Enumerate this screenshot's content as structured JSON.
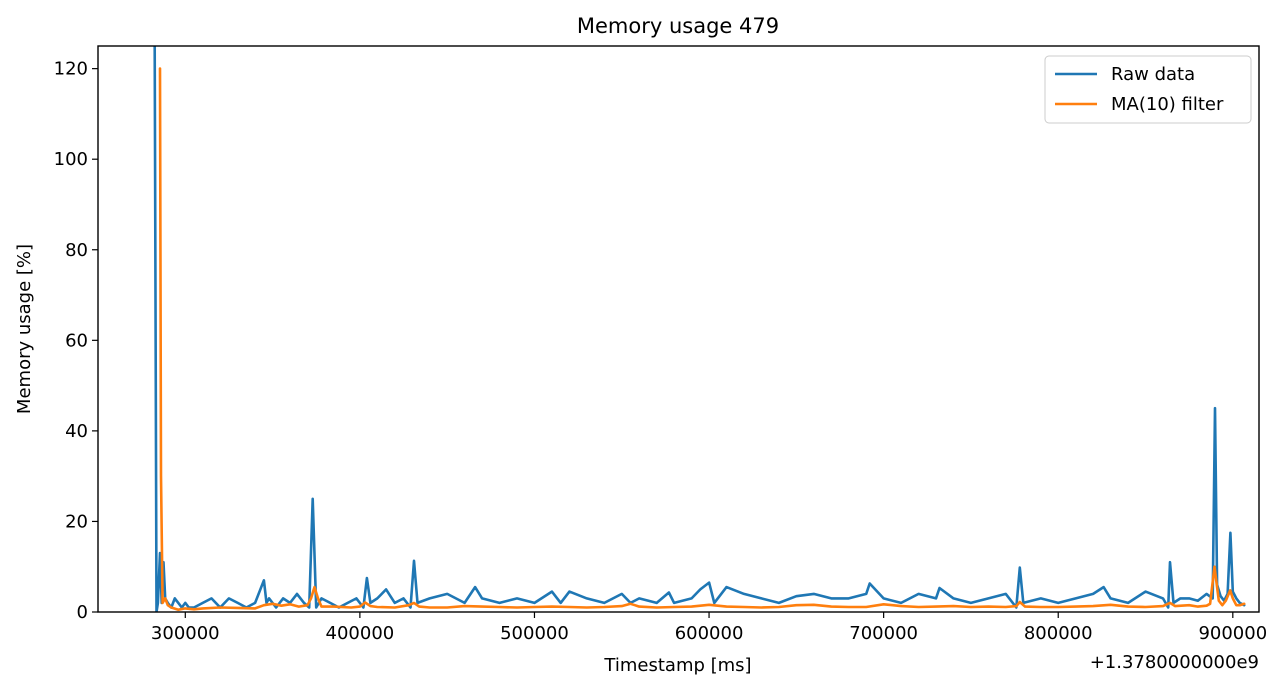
{
  "chart_data": {
    "type": "line",
    "title": "Memory usage 479",
    "xlabel": "Timestamp [ms]",
    "ylabel": "Memory usage [%]",
    "x_offset_label": "+1.3780000000e9",
    "xlim": [
      250000,
      915000
    ],
    "ylim": [
      0,
      125
    ],
    "x_ticks": [
      300000,
      400000,
      500000,
      600000,
      700000,
      800000,
      900000
    ],
    "x_tick_labels": [
      "300000",
      "400000",
      "500000",
      "600000",
      "700000",
      "800000",
      "900000"
    ],
    "y_ticks": [
      0,
      20,
      40,
      60,
      80,
      100,
      120
    ],
    "y_tick_labels": [
      "0",
      "20",
      "40",
      "60",
      "80",
      "100",
      "120"
    ],
    "grid": false,
    "legend_position": "top-right",
    "series": [
      {
        "name": "Raw data",
        "color": "#1f77b4",
        "x": [
          282500,
          283500,
          284300,
          285500,
          286500,
          287500,
          288500,
          290000,
          292000,
          294000,
          296000,
          298000,
          300000,
          302000,
          305000,
          310000,
          315000,
          320000,
          325000,
          330000,
          335000,
          340000,
          345000,
          346500,
          348000,
          352000,
          356000,
          360000,
          364000,
          368000,
          371000,
          373000,
          375000,
          378000,
          383000,
          388000,
          393000,
          398000,
          402000,
          404000,
          406000,
          410000,
          415000,
          420000,
          425000,
          429000,
          431000,
          433000,
          440000,
          450000,
          460000,
          466000,
          470000,
          480000,
          490000,
          500000,
          510000,
          515000,
          520000,
          530000,
          540000,
          550000,
          555000,
          560000,
          570000,
          577000,
          580000,
          590000,
          595000,
          600000,
          603000,
          610000,
          620000,
          630000,
          640000,
          650000,
          660000,
          670000,
          680000,
          690000,
          692000,
          700000,
          710000,
          720000,
          730000,
          732000,
          740000,
          750000,
          760000,
          770000,
          776000,
          778000,
          780000,
          790000,
          800000,
          810000,
          820000,
          826000,
          830000,
          840000,
          850000,
          860000,
          863000,
          864000,
          866000,
          870000,
          875000,
          880000,
          885000,
          888500,
          889800,
          891000,
          893000,
          895000,
          897000,
          898600,
          900000,
          902000,
          904000,
          906500
        ],
        "y": [
          125,
          0,
          2,
          13,
          2,
          11,
          3,
          2,
          1,
          3,
          2,
          1,
          2,
          1,
          1,
          2,
          3,
          1,
          3,
          2,
          1,
          2,
          7,
          2,
          3,
          1,
          3,
          2,
          4,
          2,
          1,
          25,
          1,
          3,
          2,
          1,
          2,
          3,
          1,
          7.5,
          2,
          3,
          5,
          2,
          3,
          1,
          11.3,
          2,
          3,
          4,
          2,
          5.5,
          3,
          2,
          3,
          2,
          4.5,
          2,
          4.5,
          3,
          2,
          4,
          2,
          3,
          2,
          4.3,
          2,
          3,
          5,
          6.5,
          2,
          5.5,
          4,
          3,
          2,
          3.5,
          4,
          3,
          3,
          4,
          6.3,
          3,
          2,
          4,
          3,
          5.3,
          3,
          2,
          3,
          4,
          1,
          9.8,
          2,
          3,
          2,
          3,
          4,
          5.5,
          3,
          2,
          4.5,
          3,
          1,
          11,
          2,
          3,
          3,
          2.5,
          4,
          3,
          45,
          6,
          3.5,
          2.5,
          4,
          17.5,
          4.5,
          3,
          2,
          1.5
        ]
      },
      {
        "name": "MA(10) filter",
        "color": "#ff7f0e",
        "x": [
          285500,
          286100,
          287000,
          288500,
          290000,
          292000,
          296000,
          300000,
          305000,
          310000,
          320000,
          330000,
          340000,
          345000,
          350000,
          355000,
          360000,
          365000,
          370000,
          372000,
          374000,
          376000,
          378000,
          385000,
          395000,
          400000,
          403000,
          406000,
          410000,
          420000,
          428000,
          431000,
          434000,
          440000,
          450000,
          460000,
          470000,
          480000,
          490000,
          500000,
          510000,
          520000,
          530000,
          540000,
          550000,
          555000,
          560000,
          570000,
          580000,
          590000,
          600000,
          610000,
          620000,
          630000,
          640000,
          650000,
          660000,
          670000,
          680000,
          690000,
          700000,
          710000,
          720000,
          730000,
          740000,
          750000,
          760000,
          770000,
          776000,
          778000,
          781000,
          790000,
          800000,
          810000,
          820000,
          830000,
          840000,
          850000,
          860000,
          864000,
          867000,
          875000,
          880000,
          885000,
          887000,
          889500,
          890500,
          892000,
          894000,
          896000,
          898500,
          900000,
          902000,
          904000,
          906500
        ],
        "y": [
          120,
          30,
          2,
          3,
          1.5,
          1,
          0.5,
          0.8,
          0.6,
          0.8,
          1,
          0.9,
          0.8,
          1.5,
          1.8,
          1.4,
          1.7,
          1.2,
          1.5,
          3,
          5.5,
          3,
          1.2,
          1.2,
          1,
          1.2,
          2.1,
          1.3,
          1.1,
          1,
          1.5,
          2,
          1.2,
          1,
          1,
          1.3,
          1.2,
          1.1,
          1,
          1.1,
          1.2,
          1.1,
          1,
          1.1,
          1.3,
          1.8,
          1.2,
          1,
          1.1,
          1.2,
          1.6,
          1.2,
          1.1,
          1,
          1.1,
          1.5,
          1.6,
          1.2,
          1.1,
          1.1,
          1.7,
          1.3,
          1.1,
          1.2,
          1.3,
          1.1,
          1.2,
          1.1,
          1.3,
          2.2,
          1.2,
          1.1,
          1.1,
          1.2,
          1.3,
          1.6,
          1.2,
          1.1,
          1.3,
          2,
          1.3,
          1.5,
          1.2,
          1.4,
          1.8,
          10,
          7,
          2.5,
          1.5,
          2.5,
          4.8,
          3,
          1.5,
          1.5,
          1.8
        ]
      }
    ]
  }
}
